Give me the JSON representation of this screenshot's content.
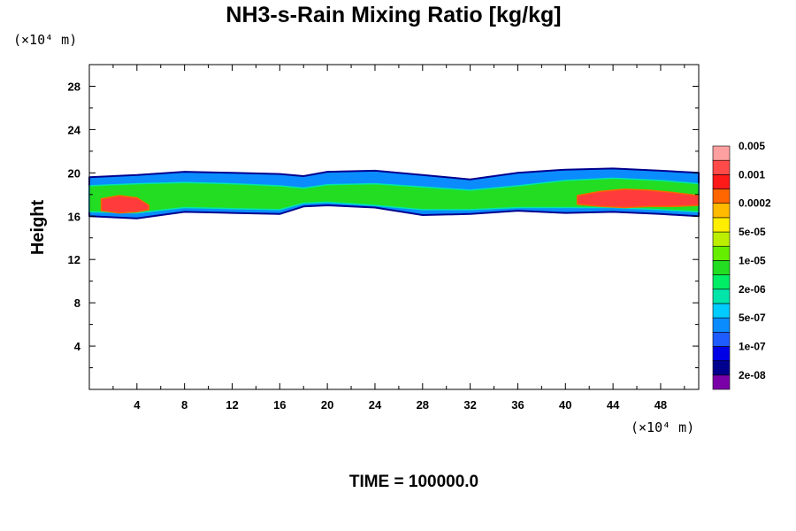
{
  "chart_data": {
    "type": "heatmap",
    "title": "NH3-s-Rain Mixing Ratio [kg/kg]",
    "xunit": "(×10⁴ m)",
    "yunit": "(×10⁴ m)",
    "ylabel": "Height",
    "time_label": "TIME = 100000.0",
    "xlim": [
      0,
      51.2
    ],
    "ylim": [
      0,
      30
    ],
    "xticks": [
      "4",
      "8",
      "12",
      "16",
      "20",
      "24",
      "28",
      "32",
      "36",
      "40",
      "44",
      "48"
    ],
    "yticks": [
      "4",
      "8",
      "12",
      "16",
      "20",
      "24",
      "28"
    ],
    "colorbar": {
      "colors": [
        "#7a00a8",
        "#00008f",
        "#0000e6",
        "#1f5cff",
        "#0a8cff",
        "#00ccff",
        "#00e6aa",
        "#00ee66",
        "#22dd22",
        "#66ee00",
        "#bbee00",
        "#ffee00",
        "#ffbb00",
        "#ff6600",
        "#ff1a1a",
        "#ff4a4a",
        "#ffa0a0"
      ],
      "labels": [
        "2e-08",
        "1e-07",
        "5e-07",
        "2e-06",
        "1e-05",
        "5e-05",
        "0.0002",
        "0.001",
        "0.005"
      ]
    },
    "field_bands": [
      {
        "level": "outer (2e-08 – 1e-07)",
        "x": [
          0.0,
          4,
          8,
          12,
          16,
          18,
          20,
          24,
          28,
          32,
          36,
          40,
          44,
          48,
          51.2
        ],
        "bottom": [
          16.0,
          15.8,
          16.4,
          16.3,
          16.2,
          16.9,
          17.0,
          16.8,
          16.1,
          16.2,
          16.5,
          16.3,
          16.4,
          16.2,
          16.0
        ],
        "top": [
          19.6,
          19.8,
          20.1,
          20.0,
          19.9,
          19.7,
          20.1,
          20.2,
          19.8,
          19.4,
          20.0,
          20.3,
          20.4,
          20.2,
          20.0
        ]
      },
      {
        "level": "mid (2e-06 – 5e-05)",
        "x": [
          0.0,
          4,
          8,
          12,
          16,
          18,
          20,
          24,
          28,
          32,
          36,
          40,
          44,
          48,
          51.2
        ],
        "bottom": [
          16.4,
          16.3,
          16.8,
          16.7,
          16.6,
          17.2,
          17.3,
          17.0,
          16.6,
          16.6,
          16.8,
          16.8,
          16.8,
          16.6,
          16.4
        ],
        "top": [
          18.8,
          19.0,
          19.1,
          19.0,
          18.8,
          18.6,
          18.9,
          19.0,
          18.7,
          18.4,
          18.8,
          19.3,
          19.5,
          19.3,
          19.0
        ]
      },
      {
        "level": "core (0.001 – 0.005)",
        "x": [
          1.0,
          2.5,
          4.0,
          5.0
        ],
        "bottom": [
          16.5,
          16.3,
          16.4,
          16.6
        ],
        "top": [
          17.6,
          17.9,
          17.7,
          17.0
        ]
      },
      {
        "level": "core (0.001 – 0.005)",
        "x": [
          41.0,
          43.0,
          45.0,
          47.0,
          49.0,
          51.2
        ],
        "bottom": [
          17.1,
          16.9,
          16.8,
          16.9,
          16.9,
          17.0
        ],
        "top": [
          17.9,
          18.3,
          18.5,
          18.4,
          18.2,
          17.9
        ]
      }
    ]
  }
}
